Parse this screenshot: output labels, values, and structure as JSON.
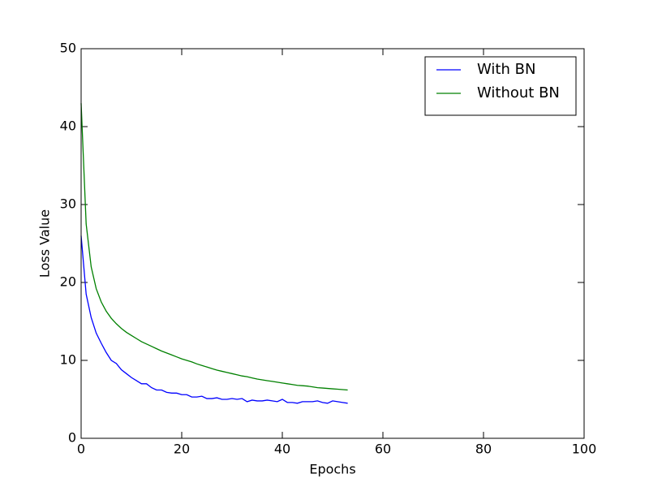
{
  "chart_data": {
    "type": "line",
    "xlabel": "Epochs",
    "ylabel": "Loss Value",
    "x": [
      0,
      1,
      2,
      3,
      4,
      5,
      6,
      7,
      8,
      9,
      10,
      11,
      12,
      13,
      14,
      15,
      16,
      17,
      18,
      19,
      20,
      21,
      22,
      23,
      24,
      25,
      26,
      27,
      28,
      29,
      30,
      31,
      32,
      33,
      34,
      35,
      36,
      37,
      38,
      39,
      40,
      41,
      42,
      43,
      44,
      45,
      46,
      47,
      48,
      49,
      50,
      51,
      52,
      53
    ],
    "series": [
      {
        "name": "With BN",
        "color": "#0000ff",
        "values": [
          26,
          18.5,
          15.5,
          13.5,
          12.2,
          11.0,
          10.0,
          9.6,
          8.8,
          8.3,
          7.8,
          7.4,
          7.0,
          7.0,
          6.5,
          6.2,
          6.2,
          5.9,
          5.8,
          5.8,
          5.6,
          5.6,
          5.3,
          5.3,
          5.4,
          5.1,
          5.1,
          5.2,
          5.0,
          5.0,
          5.1,
          5.0,
          5.1,
          4.7,
          4.9,
          4.8,
          4.8,
          4.9,
          4.8,
          4.7,
          5.0,
          4.6,
          4.6,
          4.5,
          4.7,
          4.7,
          4.7,
          4.8,
          4.6,
          4.5,
          4.8,
          4.7,
          4.6,
          4.5
        ]
      },
      {
        "name": "Without BN",
        "color": "#008000",
        "values": [
          43,
          27.5,
          22,
          19.2,
          17.5,
          16.3,
          15.4,
          14.7,
          14.1,
          13.6,
          13.2,
          12.8,
          12.4,
          12.1,
          11.8,
          11.5,
          11.2,
          10.95,
          10.7,
          10.45,
          10.2,
          10.0,
          9.8,
          9.55,
          9.35,
          9.15,
          8.95,
          8.75,
          8.6,
          8.45,
          8.3,
          8.15,
          8.0,
          7.9,
          7.75,
          7.6,
          7.5,
          7.4,
          7.3,
          7.2,
          7.1,
          7.0,
          6.9,
          6.8,
          6.75,
          6.7,
          6.6,
          6.5,
          6.45,
          6.4,
          6.35,
          6.3,
          6.25,
          6.2
        ]
      }
    ],
    "xlim": [
      0,
      100
    ],
    "ylim": [
      0,
      50
    ],
    "xticks": [
      0,
      20,
      40,
      60,
      80,
      100
    ],
    "yticks": [
      0,
      10,
      20,
      30,
      40,
      50
    ],
    "grid": false,
    "legend": "upper right"
  }
}
